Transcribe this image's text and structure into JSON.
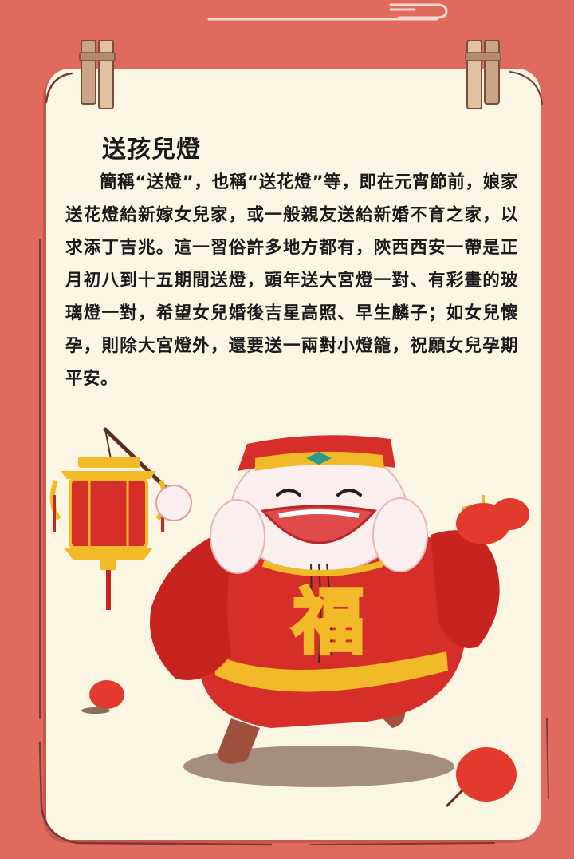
{
  "article": {
    "title": "送孩兒燈",
    "body": "簡稱“送燈”，也稱“送花燈”等，即在元宵節前，娘家送花燈給新嫁女兒家，或一般親友送給新婚不育之家，以求添丁吉兆。這一習俗許多地方都有，陝西西安一帶是正月初八到十五期間送燈，頭年送大宮燈一對、有彩畫的玻璃燈一對，希望女兒婚後吉星高照、早生麟子；如女兒懷孕，則除大宮燈外，還要送一兩對小燈籠，祝願女兒孕期平安。"
  },
  "illustration": {
    "character": "god-of-fortune",
    "chest_glyph": "福"
  },
  "colors": {
    "background": "#e06a5e",
    "paper": "#fbf5e3",
    "robe_red": "#d62f2a",
    "gold": "#f2b928",
    "text": "#1a1a1a"
  }
}
